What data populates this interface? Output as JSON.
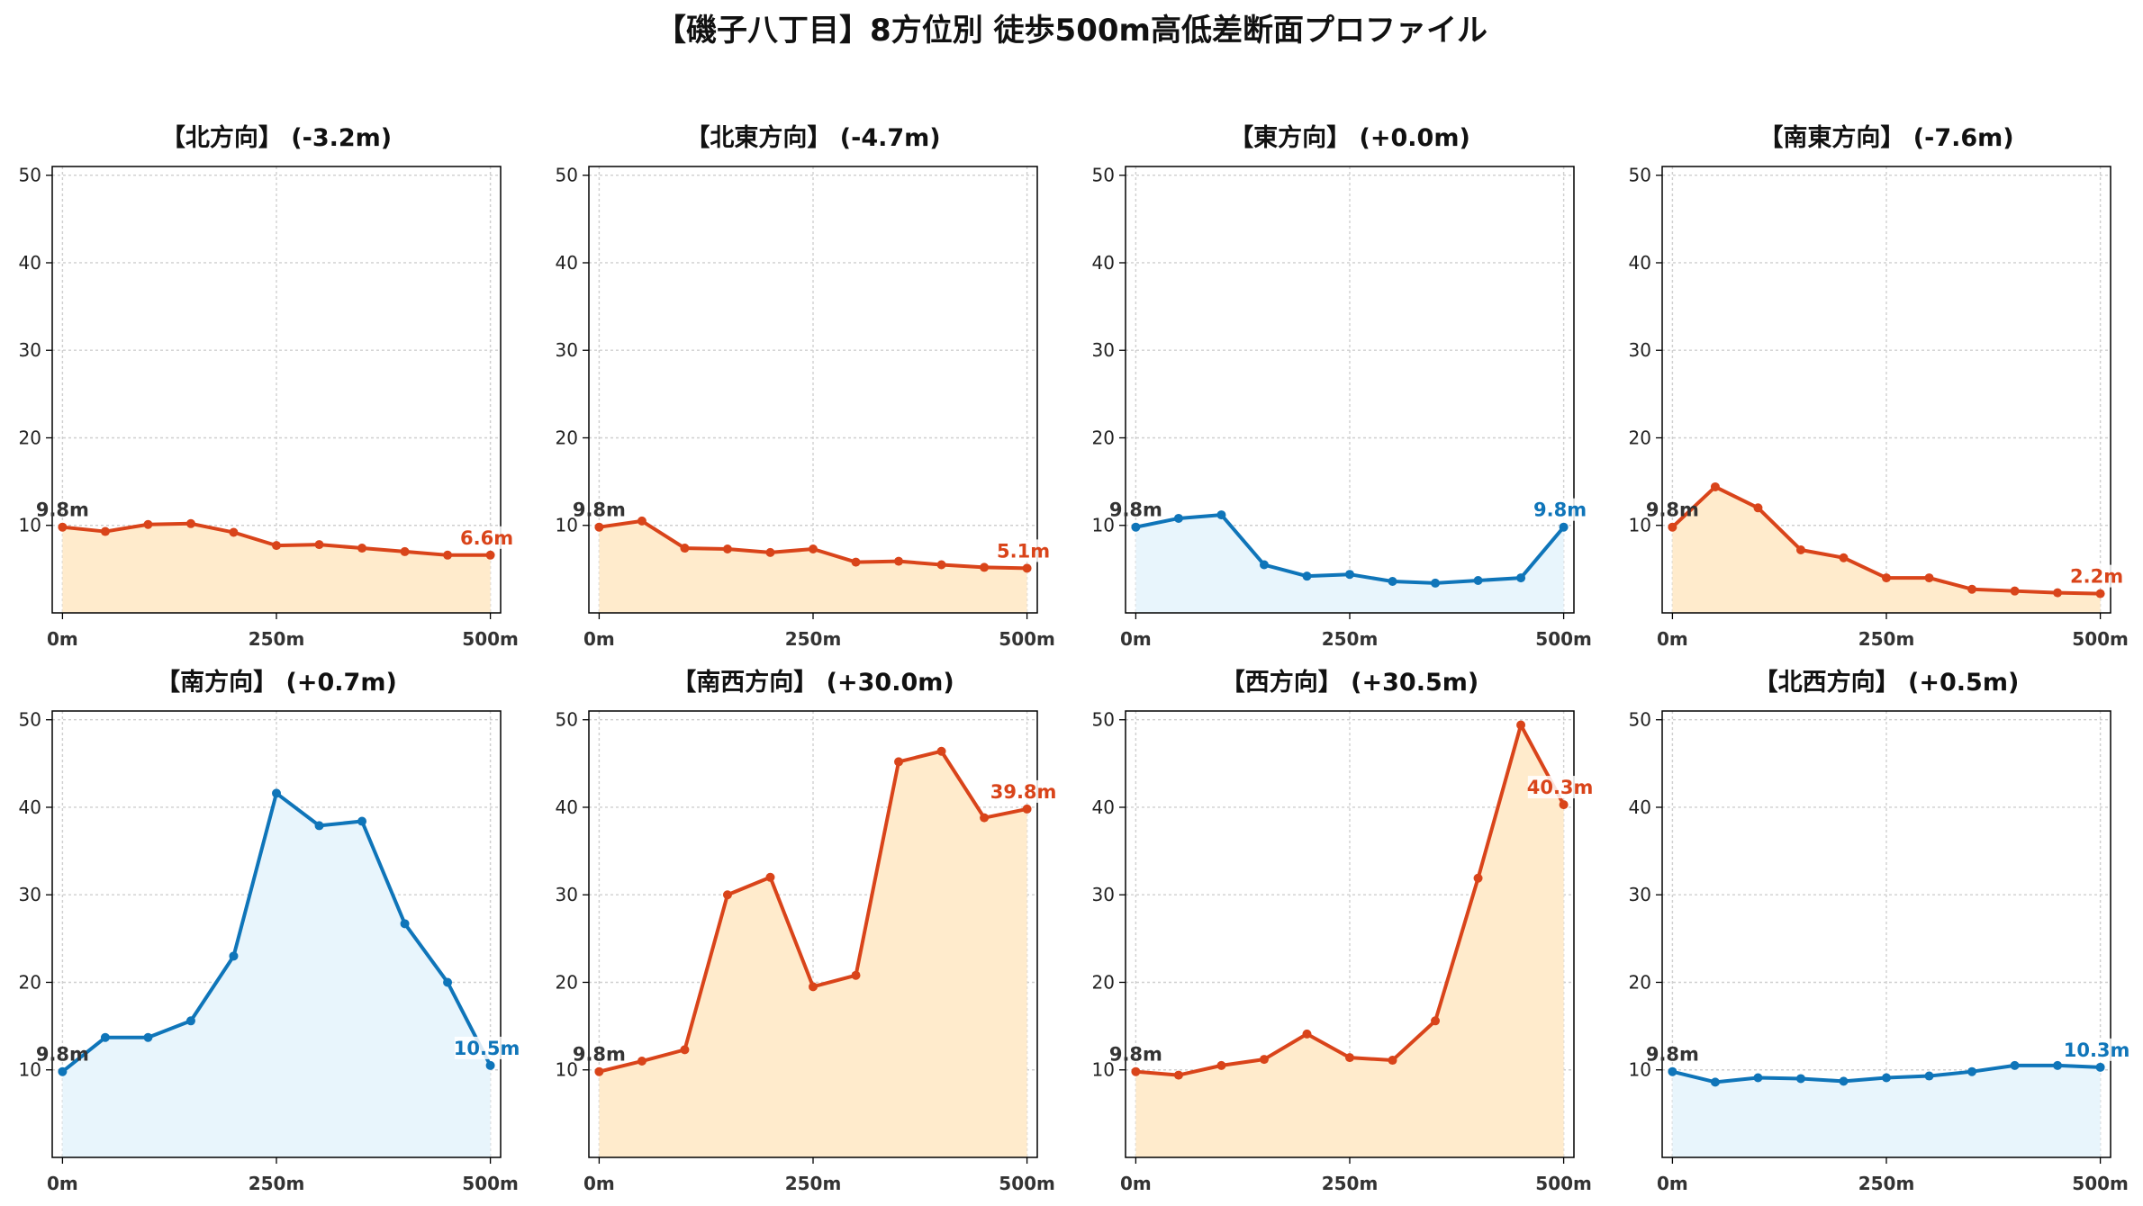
{
  "title": "【磯子八丁目】8方位別 徒歩500m高低差断面プロファイル",
  "colors": {
    "down_line": "#D9441A",
    "down_fill": "#FFEBCC",
    "up_line": "#0F75B9",
    "up_fill": "#E8F5FC",
    "start_label": "#333333"
  },
  "chart_data": [
    {
      "type": "area",
      "title": "【北方向】 (-3.2m)",
      "trend": "down",
      "x": [
        0,
        50,
        100,
        150,
        200,
        250,
        300,
        350,
        400,
        450,
        500
      ],
      "values": [
        9.8,
        9.3,
        10.1,
        10.2,
        9.2,
        7.7,
        7.8,
        7.4,
        7.0,
        6.6,
        6.6
      ],
      "start_label": "9.8m",
      "end_label": "6.6m",
      "xticks": [
        "0m",
        "250m",
        "500m"
      ],
      "yticks": [
        "10",
        "20",
        "30",
        "40",
        "50"
      ],
      "ylim": [
        0,
        51
      ],
      "xlim": [
        -12,
        512
      ],
      "grid": true
    },
    {
      "type": "area",
      "title": "【北東方向】 (-4.7m)",
      "trend": "down",
      "x": [
        0,
        50,
        100,
        150,
        200,
        250,
        300,
        350,
        400,
        450,
        500
      ],
      "values": [
        9.8,
        10.5,
        7.4,
        7.3,
        6.9,
        7.3,
        5.8,
        5.9,
        5.5,
        5.2,
        5.1
      ],
      "start_label": "9.8m",
      "end_label": "5.1m",
      "xticks": [
        "0m",
        "250m",
        "500m"
      ],
      "yticks": [
        "10",
        "20",
        "30",
        "40",
        "50"
      ],
      "ylim": [
        0,
        51
      ],
      "xlim": [
        -12,
        512
      ],
      "grid": true
    },
    {
      "type": "area",
      "title": "【東方向】 (+0.0m)",
      "trend": "up",
      "x": [
        0,
        50,
        100,
        150,
        200,
        250,
        300,
        350,
        400,
        450,
        500
      ],
      "values": [
        9.8,
        10.8,
        11.2,
        5.5,
        4.2,
        4.4,
        3.6,
        3.4,
        3.7,
        4.0,
        9.8
      ],
      "start_label": "9.8m",
      "end_label": "9.8m",
      "xticks": [
        "0m",
        "250m",
        "500m"
      ],
      "yticks": [
        "10",
        "20",
        "30",
        "40",
        "50"
      ],
      "ylim": [
        0,
        51
      ],
      "xlim": [
        -12,
        512
      ],
      "grid": true
    },
    {
      "type": "area",
      "title": "【南東方向】 (-7.6m)",
      "trend": "down",
      "x": [
        0,
        50,
        100,
        150,
        200,
        250,
        300,
        350,
        400,
        450,
        500
      ],
      "values": [
        9.8,
        14.4,
        12.0,
        7.2,
        6.3,
        4.0,
        4.0,
        2.7,
        2.5,
        2.3,
        2.2
      ],
      "start_label": "9.8m",
      "end_label": "2.2m",
      "xticks": [
        "0m",
        "250m",
        "500m"
      ],
      "yticks": [
        "10",
        "20",
        "30",
        "40",
        "50"
      ],
      "ylim": [
        0,
        51
      ],
      "xlim": [
        -12,
        512
      ],
      "grid": true
    },
    {
      "type": "area",
      "title": "【南方向】 (+0.7m)",
      "trend": "up",
      "x": [
        0,
        50,
        100,
        150,
        200,
        250,
        300,
        350,
        400,
        450,
        500
      ],
      "values": [
        9.8,
        13.7,
        13.7,
        15.6,
        23.0,
        41.6,
        37.9,
        38.4,
        26.7,
        20.0,
        10.5
      ],
      "start_label": "9.8m",
      "end_label": "10.5m",
      "xticks": [
        "0m",
        "250m",
        "500m"
      ],
      "yticks": [
        "10",
        "20",
        "30",
        "40",
        "50"
      ],
      "ylim": [
        0,
        51
      ],
      "xlim": [
        -12,
        512
      ],
      "grid": true
    },
    {
      "type": "area",
      "title": "【南西方向】 (+30.0m)",
      "trend": "down",
      "x": [
        0,
        50,
        100,
        150,
        200,
        250,
        300,
        350,
        400,
        450,
        500
      ],
      "values": [
        9.8,
        11.0,
        12.3,
        30.0,
        32.0,
        19.5,
        20.8,
        45.2,
        46.4,
        38.8,
        39.8
      ],
      "start_label": "9.8m",
      "end_label": "39.8m",
      "xticks": [
        "0m",
        "250m",
        "500m"
      ],
      "yticks": [
        "10",
        "20",
        "30",
        "40",
        "50"
      ],
      "ylim": [
        0,
        51
      ],
      "xlim": [
        -12,
        512
      ],
      "grid": true
    },
    {
      "type": "area",
      "title": "【西方向】 (+30.5m)",
      "trend": "down",
      "x": [
        0,
        50,
        100,
        150,
        200,
        250,
        300,
        350,
        400,
        450,
        500
      ],
      "values": [
        9.8,
        9.4,
        10.5,
        11.2,
        14.1,
        11.4,
        11.1,
        15.6,
        31.9,
        49.4,
        40.3
      ],
      "start_label": "9.8m",
      "end_label": "40.3m",
      "xticks": [
        "0m",
        "250m",
        "500m"
      ],
      "yticks": [
        "10",
        "20",
        "30",
        "40",
        "50"
      ],
      "ylim": [
        0,
        51
      ],
      "xlim": [
        -12,
        512
      ],
      "grid": true
    },
    {
      "type": "area",
      "title": "【北西方向】 (+0.5m)",
      "trend": "up",
      "x": [
        0,
        50,
        100,
        150,
        200,
        250,
        300,
        350,
        400,
        450,
        500
      ],
      "values": [
        9.8,
        8.6,
        9.1,
        9.0,
        8.7,
        9.1,
        9.3,
        9.8,
        10.5,
        10.5,
        10.3
      ],
      "start_label": "9.8m",
      "end_label": "10.3m",
      "xticks": [
        "0m",
        "250m",
        "500m"
      ],
      "yticks": [
        "10",
        "20",
        "30",
        "40",
        "50"
      ],
      "ylim": [
        0,
        51
      ],
      "xlim": [
        -12,
        512
      ],
      "grid": true
    }
  ]
}
